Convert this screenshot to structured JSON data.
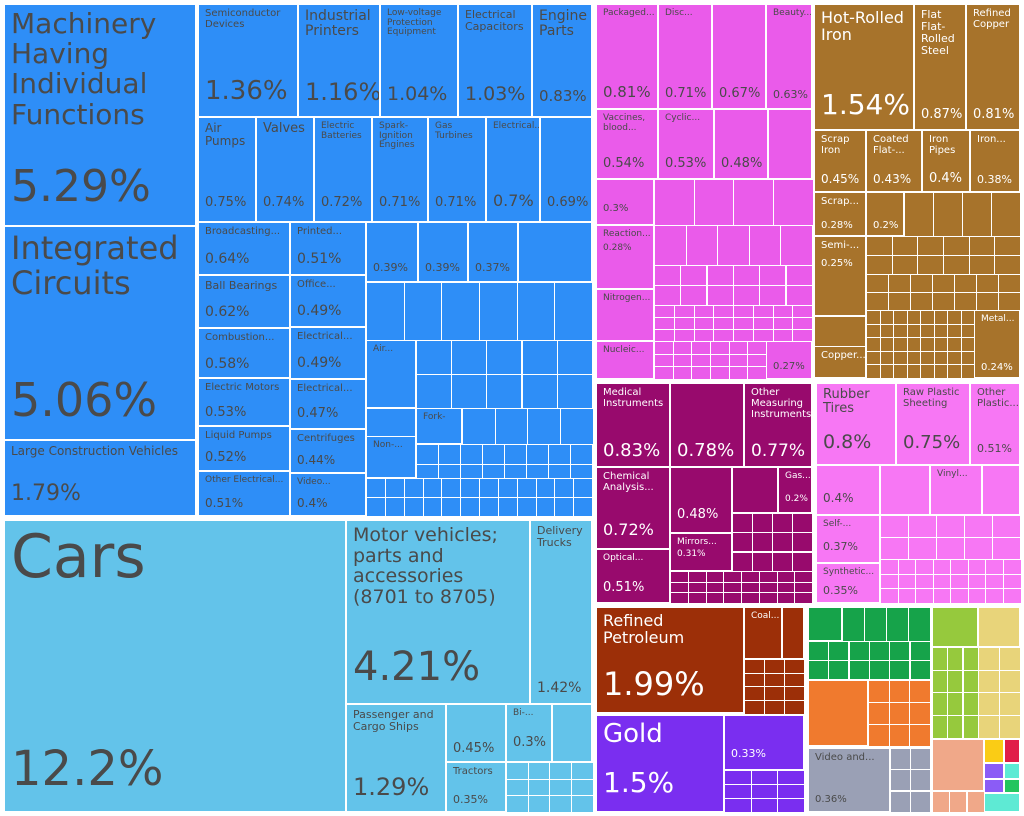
{
  "chart_data": {
    "type": "treemap",
    "unit": "%",
    "colors": {
      "machinery": "#2e8ef7",
      "transportation": "#63c3ea",
      "chemicals": "#ea5bea",
      "metals": "#a7732b",
      "instruments": "#980a6d",
      "plastics_rubbers": "#f777f4",
      "mineral_products": "#9c2f08",
      "precious_metals": "#7a2ef0",
      "foodstuffs": "#16a34a",
      "textiles": "#f07a2e",
      "misc": "#9aa0b5",
      "vegetable": "#96c93d",
      "animal_hides": "#e8d47a",
      "stone_glass": "#f0a889",
      "red_small": "#e11d48",
      "purple_small": "#8b5cf6",
      "teal_small": "#5eead4",
      "yellow_small": "#facc15",
      "green_small": "#22c55e"
    },
    "items": [
      {
        "name": "Machinery Having Individual Functions",
        "value": "5.29%",
        "color": "machinery"
      },
      {
        "name": "Integrated Circuits",
        "value": "5.06%",
        "color": "machinery"
      },
      {
        "name": "Large Construction Vehicles",
        "value": "1.79%",
        "color": "machinery"
      },
      {
        "name": "Semiconductor Devices",
        "value": "1.36%",
        "color": "machinery"
      },
      {
        "name": "Industrial Printers",
        "value": "1.16%",
        "color": "machinery"
      },
      {
        "name": "Low-voltage Protection Equipment",
        "value": "1.04%",
        "color": "machinery"
      },
      {
        "name": "Electrical Capacitors",
        "value": "1.03%",
        "color": "machinery"
      },
      {
        "name": "Engine Parts",
        "value": "0.83%",
        "color": "machinery"
      },
      {
        "name": "Air Pumps",
        "value": "0.75%",
        "color": "machinery"
      },
      {
        "name": "Valves",
        "value": "0.74%",
        "color": "machinery"
      },
      {
        "name": "Electric Batteries",
        "value": "0.72%",
        "color": "machinery"
      },
      {
        "name": "Spark-Ignition Engines",
        "value": "0.71%",
        "color": "machinery"
      },
      {
        "name": "Gas Turbines",
        "value": "0.71%",
        "color": "machinery"
      },
      {
        "name": "Electrical...",
        "value": "0.7%",
        "color": "machinery"
      },
      {
        "name": "",
        "value": "0.69%",
        "color": "machinery"
      },
      {
        "name": "Broadcasting...",
        "value": "0.64%",
        "color": "machinery"
      },
      {
        "name": "Ball Bearings",
        "value": "0.62%",
        "color": "machinery"
      },
      {
        "name": "Combustion...",
        "value": "0.58%",
        "color": "machinery"
      },
      {
        "name": "Electric Motors",
        "value": "0.53%",
        "color": "machinery"
      },
      {
        "name": "Liquid Pumps",
        "value": "0.52%",
        "color": "machinery"
      },
      {
        "name": "Other Electrical...",
        "value": "0.51%",
        "color": "machinery"
      },
      {
        "name": "Printed...",
        "value": "0.51%",
        "color": "machinery"
      },
      {
        "name": "Office...",
        "value": "0.49%",
        "color": "machinery"
      },
      {
        "name": "Electrical...",
        "value": "0.49%",
        "color": "machinery"
      },
      {
        "name": "Electrical...",
        "value": "0.47%",
        "color": "machinery"
      },
      {
        "name": "Centrifuges",
        "value": "0.44%",
        "color": "machinery"
      },
      {
        "name": "Video...",
        "value": "0.4%",
        "color": "machinery"
      },
      {
        "name": "",
        "value": "0.39%",
        "color": "machinery"
      },
      {
        "name": "",
        "value": "0.39%",
        "color": "machinery"
      },
      {
        "name": "",
        "value": "0.37%",
        "color": "machinery"
      },
      {
        "name": "Air...",
        "value": "",
        "color": "machinery"
      },
      {
        "name": "Fork-",
        "value": "",
        "color": "machinery"
      },
      {
        "name": "Non-...",
        "value": "",
        "color": "machinery"
      },
      {
        "name": "Cars",
        "value": "12.2%",
        "color": "transportation"
      },
      {
        "name": "Motor vehicles; parts and accessories (8701 to 8705)",
        "value": "4.21%",
        "color": "transportation"
      },
      {
        "name": "Delivery Trucks",
        "value": "1.42%",
        "color": "transportation"
      },
      {
        "name": "Passenger and Cargo Ships",
        "value": "1.29%",
        "color": "transportation"
      },
      {
        "name": "",
        "value": "0.45%",
        "color": "transportation"
      },
      {
        "name": "Bi-...",
        "value": "0.3%",
        "color": "transportation"
      },
      {
        "name": "Tractors",
        "value": "0.35%",
        "color": "transportation"
      },
      {
        "name": "Packaged...",
        "value": "0.81%",
        "color": "chemicals"
      },
      {
        "name": "Disc...",
        "value": "0.71%",
        "color": "chemicals"
      },
      {
        "name": "",
        "value": "0.67%",
        "color": "chemicals"
      },
      {
        "name": "Beauty...",
        "value": "0.63%",
        "color": "chemicals"
      },
      {
        "name": "Vaccines, blood...",
        "value": "0.54%",
        "color": "chemicals"
      },
      {
        "name": "Cyclic...",
        "value": "0.53%",
        "color": "chemicals"
      },
      {
        "name": "",
        "value": "0.48%",
        "color": "chemicals"
      },
      {
        "name": "",
        "value": "0.3%",
        "color": "chemicals"
      },
      {
        "name": "Reaction...",
        "value": "0.28%",
        "color": "chemicals"
      },
      {
        "name": "Nitrogen...",
        "value": "",
        "color": "chemicals"
      },
      {
        "name": "Nucleic...",
        "value": "",
        "color": "chemicals"
      },
      {
        "name": "",
        "value": "0.27%",
        "color": "chemicals"
      },
      {
        "name": "Hot-Rolled Iron",
        "value": "1.54%",
        "color": "metals"
      },
      {
        "name": "Flat Flat-Rolled Steel",
        "value": "0.87%",
        "color": "metals"
      },
      {
        "name": "Refined Copper",
        "value": "0.81%",
        "color": "metals"
      },
      {
        "name": "Scrap Iron",
        "value": "0.45%",
        "color": "metals"
      },
      {
        "name": "Coated Flat-...",
        "value": "0.43%",
        "color": "metals"
      },
      {
        "name": "Iron Pipes",
        "value": "0.4%",
        "color": "metals"
      },
      {
        "name": "Iron...",
        "value": "0.38%",
        "color": "metals"
      },
      {
        "name": "Scrap...",
        "value": "0.28%",
        "color": "metals"
      },
      {
        "name": "",
        "value": "0.2%",
        "color": "metals"
      },
      {
        "name": "Semi-...",
        "value": "0.25%",
        "color": "metals"
      },
      {
        "name": "Copper...",
        "value": "",
        "color": "metals"
      },
      {
        "name": "Metal...",
        "value": "0.24%",
        "color": "metals"
      },
      {
        "name": "Medical Instruments",
        "value": "0.83%",
        "color": "instruments"
      },
      {
        "name": "",
        "value": "0.78%",
        "color": "instruments"
      },
      {
        "name": "Other Measuring Instruments",
        "value": "0.77%",
        "color": "instruments"
      },
      {
        "name": "Chemical Analysis...",
        "value": "0.72%",
        "color": "instruments"
      },
      {
        "name": "",
        "value": "0.48%",
        "color": "instruments"
      },
      {
        "name": "Gas...",
        "value": "0.2%",
        "color": "instruments"
      },
      {
        "name": "Mirrors...",
        "value": "0.31%",
        "color": "instruments"
      },
      {
        "name": "Optical...",
        "value": "0.51%",
        "color": "instruments"
      },
      {
        "name": "Rubber Tires",
        "value": "0.8%",
        "color": "plastics_rubbers"
      },
      {
        "name": "Raw Plastic Sheeting",
        "value": "0.75%",
        "color": "plastics_rubbers"
      },
      {
        "name": "Other Plastic...",
        "value": "0.51%",
        "color": "plastics_rubbers"
      },
      {
        "name": "",
        "value": "0.4%",
        "color": "plastics_rubbers"
      },
      {
        "name": "Vinyl...",
        "value": "",
        "color": "plastics_rubbers"
      },
      {
        "name": "Self-...",
        "value": "0.37%",
        "color": "plastics_rubbers"
      },
      {
        "name": "Synthetic...",
        "value": "0.35%",
        "color": "plastics_rubbers"
      },
      {
        "name": "Refined Petroleum",
        "value": "1.99%",
        "color": "mineral_products"
      },
      {
        "name": "Coal...",
        "value": "",
        "color": "mineral_products"
      },
      {
        "name": "Gold",
        "value": "1.5%",
        "color": "precious_metals"
      },
      {
        "name": "",
        "value": "0.33%",
        "color": "precious_metals"
      },
      {
        "name": "Video and...",
        "value": "0.36%",
        "color": "misc"
      }
    ]
  }
}
